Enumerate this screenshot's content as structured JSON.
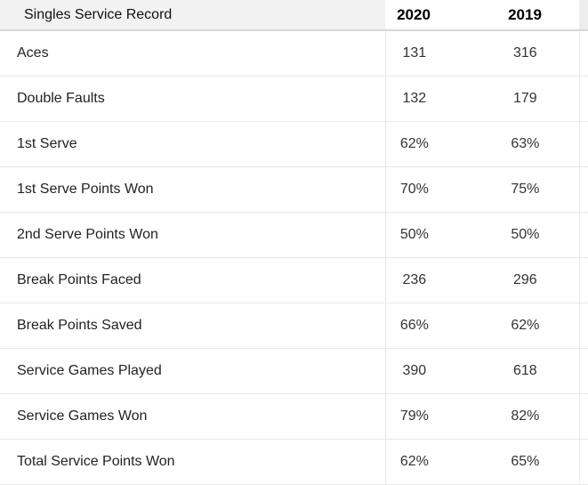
{
  "chart_data": {
    "type": "table",
    "title": "Singles Service Record",
    "columns": [
      "Singles Service Record",
      "2020",
      "2019"
    ],
    "rows": [
      [
        "Aces",
        "131",
        "316"
      ],
      [
        "Double Faults",
        "132",
        "179"
      ],
      [
        "1st Serve",
        "62%",
        "63%"
      ],
      [
        "1st Serve Points Won",
        "70%",
        "75%"
      ],
      [
        "2nd Serve Points Won",
        "50%",
        "50%"
      ],
      [
        "Break Points Faced",
        "236",
        "296"
      ],
      [
        "Break Points Saved",
        "66%",
        "62%"
      ],
      [
        "Service Games Played",
        "390",
        "618"
      ],
      [
        "Service Games Won",
        "79%",
        "82%"
      ],
      [
        "Total Service Points Won",
        "62%",
        "65%"
      ]
    ]
  },
  "table": {
    "header": {
      "title": "Singles Service Record",
      "col_2020": "2020",
      "col_2019": "2019"
    },
    "rows": [
      {
        "label": "Aces",
        "v2020": "131",
        "v2019": "316"
      },
      {
        "label": "Double Faults",
        "v2020": "132",
        "v2019": "179"
      },
      {
        "label": "1st Serve",
        "v2020": "62%",
        "v2019": "63%"
      },
      {
        "label": "1st Serve Points Won",
        "v2020": "70%",
        "v2019": "75%"
      },
      {
        "label": "2nd Serve Points Won",
        "v2020": "50%",
        "v2019": "50%"
      },
      {
        "label": "Break Points Faced",
        "v2020": "236",
        "v2019": "296"
      },
      {
        "label": "Break Points Saved",
        "v2020": "66%",
        "v2019": "62%"
      },
      {
        "label": "Service Games Played",
        "v2020": "390",
        "v2019": "618"
      },
      {
        "label": "Service Games Won",
        "v2020": "79%",
        "v2019": "82%"
      },
      {
        "label": "Total Service Points Won",
        "v2020": "62%",
        "v2019": "65%"
      }
    ]
  },
  "colors": {
    "header_label_bg": "#f2f2f2",
    "header_strip_bg": "#ededed",
    "header_bottom_border": "#d8d8d8",
    "row_border": "#e7e7e7",
    "label_text": "#222222",
    "value_text": "#333333",
    "header_text": "#000000"
  }
}
